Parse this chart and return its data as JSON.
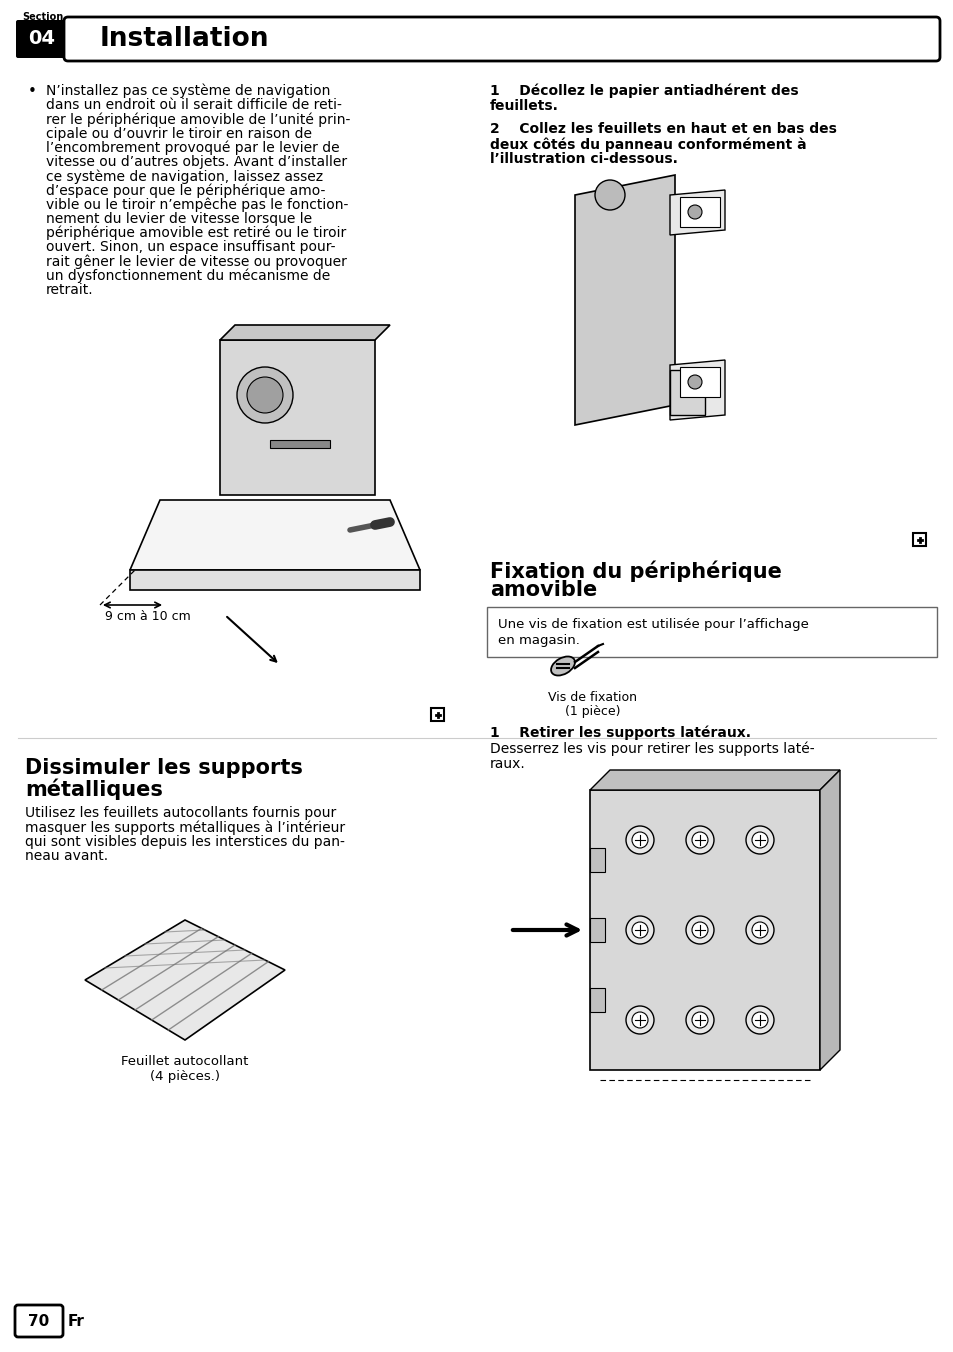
{
  "bg_color": "#ffffff",
  "section_number": "04",
  "section_title": "Installation",
  "page_number": "70",
  "page_lang": "Fr",
  "bullet_text_lines": [
    "N’installez pas ce système de navigation",
    "dans un endroit où il serait difficile de reti-",
    "rer le périphérique amovible de l’unité prin-",
    "cipale ou d’ouvrir le tiroir en raison de",
    "l’encombrement provoqué par le levier de",
    "vitesse ou d’autres objets. Avant d’installer",
    "ce système de navigation, laissez assez",
    "d’espace pour que le périphérique amo-",
    "vible ou le tiroir n’empêche pas le fonction-",
    "nement du levier de vitesse lorsque le",
    "périphérique amovible est retiré ou le tiroir",
    "ouvert. Sinon, un espace insuffisant pour-",
    "rait gêner le levier de vitesse ou provoquer",
    "un dysfonctionnement du mécanisme de",
    "retrait."
  ],
  "right_step1_line1": "1    Décollez le papier antiadhérent des",
  "right_step1_line2": "feuillets.",
  "right_step2_line1": "2    Collez les feuillets en haut et en bas des",
  "right_step2_line2": "deux côtés du panneau conformément à",
  "right_step2_line3": "l’illustration ci-dessous.",
  "dim_label": "9 cm à 10 cm",
  "section2_left_title_line1": "Dissimuler les supports",
  "section2_left_title_line2": "métalliques",
  "section2_left_body_lines": [
    "Utilisez les feuillets autocollants fournis pour",
    "masquer les supports métalliques à l’intérieur",
    "qui sont visibles depuis les interstices du pan-",
    "neau avant."
  ],
  "section2_left_caption_line1": "Feuillet autocollant",
  "section2_left_caption_line2": "(4 pièces.)",
  "section2_right_title_line1": "Fixation du périphérique",
  "section2_right_title_line2": "amovible",
  "section2_right_box_line1": "Une vis de fixation est utilisée pour l’affichage",
  "section2_right_box_line2": "en magasin.",
  "section2_right_caption_line1": "Vis de fixation",
  "section2_right_caption_line2": "(1 pièce)",
  "section2_right_step1_bold": "1    Retirer les supports latéraux.",
  "section2_right_step1_body_line1": "Desserrez les vis pour retirer les supports laté-",
  "section2_right_step1_body_line2": "raux."
}
